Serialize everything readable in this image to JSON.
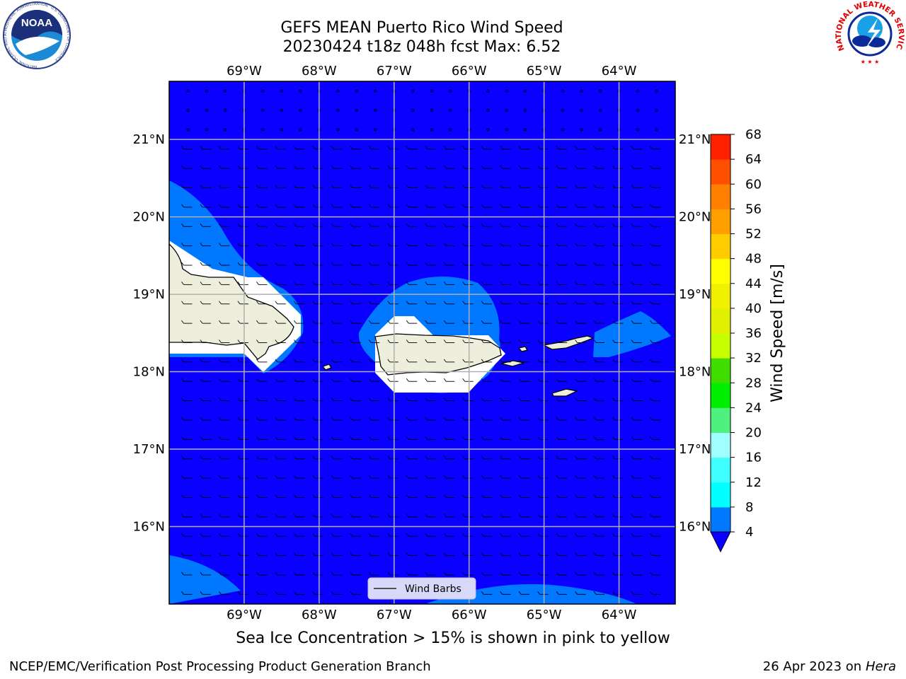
{
  "header": {
    "title_line1": "GEFS MEAN Puerto Rico Wind Speed",
    "title_line2": "20230424 t18z 048h fcst   Max: 6.52"
  },
  "logos": {
    "left": {
      "name": "noaa-logo",
      "text": "NOAA",
      "ring_text": "NATIONAL OCEANIC AND ATMOSPHERIC ADMINISTRATION · U.S. DEPARTMENT OF COMMERCE"
    },
    "right": {
      "name": "nws-logo",
      "ring_text": "NATIONAL WEATHER SERVICE"
    }
  },
  "map": {
    "lon_labels": [
      "69°W",
      "68°W",
      "67°W",
      "66°W",
      "65°W",
      "64°W"
    ],
    "lat_labels": [
      "21°N",
      "20°N",
      "19°N",
      "18°N",
      "17°N",
      "16°N"
    ],
    "lon_values": [
      -69,
      -68,
      -67,
      -66,
      -65,
      -64
    ],
    "lat_values": [
      21,
      20,
      19,
      18,
      17,
      16
    ],
    "extent": {
      "lon_min": -70.0,
      "lon_max": -63.25,
      "lat_min": 15.0,
      "lat_max": 21.75
    },
    "legend_label": "Wind Barbs",
    "colors": {
      "ocean": "#0a00ff",
      "band_4_8": "#0078ff",
      "land": "#eeeedd",
      "mask": "#ffffff",
      "grid": "#b0b0b0"
    }
  },
  "colorbar": {
    "label": "Wind Speed [m/s]",
    "ticks": [
      "68",
      "64",
      "60",
      "56",
      "52",
      "48",
      "44",
      "40",
      "36",
      "32",
      "28",
      "24",
      "20",
      "16",
      "12",
      "8",
      "4"
    ],
    "levels": [
      4,
      8,
      12,
      16,
      20,
      24,
      28,
      32,
      36,
      40,
      44,
      48,
      52,
      56,
      60,
      64,
      68
    ],
    "colors": [
      "#0078ff",
      "#00ffff",
      "#40ffff",
      "#a0ffff",
      "#50f080",
      "#00ee00",
      "#40dd00",
      "#c8ff00",
      "#e0f000",
      "#f0f000",
      "#ffff00",
      "#ffcc00",
      "#ffa000",
      "#ff8000",
      "#ff5000",
      "#ff2000",
      "#ff0000"
    ],
    "under_color": "#0a00ff"
  },
  "note": "Sea Ice Concentration > 15% is shown in pink to yellow",
  "footer": {
    "left": "NCEP/EMC/Verification Post Processing Product Generation Branch",
    "right_prefix": "26 Apr 2023 on ",
    "right_host": "Hera"
  }
}
